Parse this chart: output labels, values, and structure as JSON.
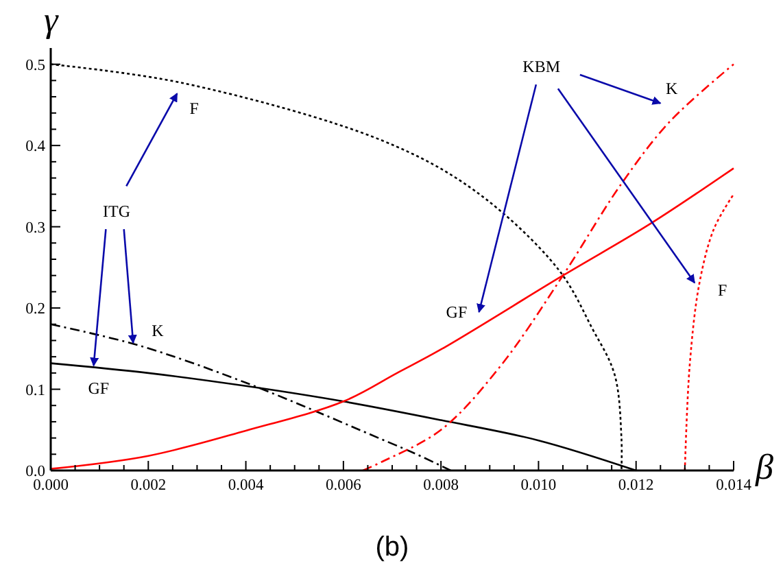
{
  "chart_data": {
    "type": "line",
    "xlabel": "β",
    "ylabel": "γ",
    "xlim": [
      0,
      0.014
    ],
    "ylim": [
      0,
      0.52
    ],
    "xticks": [
      {
        "value": 0,
        "label": "0.000"
      },
      {
        "value": 0.0005,
        "label": null
      },
      {
        "value": 0.001,
        "label": null
      },
      {
        "value": 0.0015,
        "label": null
      },
      {
        "value": 0.002,
        "label": "0.002"
      },
      {
        "value": 0.0025,
        "label": null
      },
      {
        "value": 0.003,
        "label": null
      },
      {
        "value": 0.0035,
        "label": null
      },
      {
        "value": 0.004,
        "label": "0.004"
      },
      {
        "value": 0.0045,
        "label": null
      },
      {
        "value": 0.005,
        "label": null
      },
      {
        "value": 0.0055,
        "label": null
      },
      {
        "value": 0.006,
        "label": "0.006"
      },
      {
        "value": 0.0065,
        "label": null
      },
      {
        "value": 0.007,
        "label": null
      },
      {
        "value": 0.0075,
        "label": null
      },
      {
        "value": 0.008,
        "label": "0.008"
      },
      {
        "value": 0.0085,
        "label": null
      },
      {
        "value": 0.009,
        "label": null
      },
      {
        "value": 0.0095,
        "label": null
      },
      {
        "value": 0.01,
        "label": "0.010"
      },
      {
        "value": 0.0105,
        "label": null
      },
      {
        "value": 0.011,
        "label": null
      },
      {
        "value": 0.0115,
        "label": null
      },
      {
        "value": 0.012,
        "label": "0.012"
      },
      {
        "value": 0.0125,
        "label": null
      },
      {
        "value": 0.013,
        "label": null
      },
      {
        "value": 0.0135,
        "label": null
      },
      {
        "value": 0.014,
        "label": "0.014"
      }
    ],
    "yticks": [
      {
        "value": 0,
        "label": "0.0"
      },
      {
        "value": 0.02,
        "label": null
      },
      {
        "value": 0.04,
        "label": null
      },
      {
        "value": 0.06,
        "label": null
      },
      {
        "value": 0.08,
        "label": null
      },
      0.1,
      {
        "value": 0.12,
        "label": null
      },
      {
        "value": 0.14,
        "label": null
      },
      {
        "value": 0.16,
        "label": null
      },
      {
        "value": 0.18,
        "label": null
      },
      0.2,
      {
        "value": 0.22,
        "label": null
      },
      {
        "value": 0.24,
        "label": null
      },
      {
        "value": 0.26,
        "label": null
      },
      {
        "value": 0.28,
        "label": null
      },
      0.3,
      {
        "value": 0.32,
        "label": null
      },
      {
        "value": 0.34,
        "label": null
      },
      {
        "value": 0.36,
        "label": null
      },
      {
        "value": 0.38,
        "label": null
      },
      0.4,
      {
        "value": 0.42,
        "label": null
      },
      {
        "value": 0.44,
        "label": null
      },
      {
        "value": 0.46,
        "label": null
      },
      {
        "value": 0.48,
        "label": null
      },
      0.5
    ],
    "grid": false,
    "marker": "none",
    "series": [
      {
        "color": "#000000",
        "line_style": "solid",
        "x": [
          0,
          0.002,
          0.004,
          0.006,
          0.008,
          0.01,
          0.012
        ],
        "values": [
          0.132,
          0.12,
          0.104,
          0.085,
          0.062,
          0.037,
          0
        ]
      },
      {
        "color": "#000000",
        "line_style": "dashed",
        "x": [
          0,
          0.0018,
          0.004,
          0.0068,
          0.0075,
          0.0082
        ],
        "values": [
          0.18,
          0.154,
          0.108,
          0.038,
          0.02,
          0
        ]
      },
      {
        "color": "#000000",
        "line_style": "dotted",
        "x": [
          0,
          0.0027,
          0.0068,
          0.0087,
          0.0104,
          0.0111,
          0.01156,
          0.0117,
          0.0117
        ],
        "values": [
          0.5,
          0.477,
          0.406,
          0.344,
          0.248,
          0.175,
          0.118,
          0.04,
          0
        ]
      },
      {
        "color": "#ff0000",
        "line_style": "solid",
        "x": [
          0,
          0.002,
          0.004,
          0.006,
          0.0071,
          0.008,
          0.0105,
          0.0123,
          0.014
        ],
        "values": [
          0.002,
          0.018,
          0.049,
          0.085,
          0.12,
          0.149,
          0.24,
          0.304,
          0.372
        ]
      },
      {
        "color": "#ff0000",
        "line_style": "dashed",
        "x": [
          0.0064,
          0.0068,
          0.008,
          0.0092,
          0.0105,
          0.0117,
          0.0127,
          0.014
        ],
        "values": [
          0,
          0.011,
          0.05,
          0.127,
          0.24,
          0.353,
          0.43,
          0.5
        ]
      },
      {
        "color": "#ff0000",
        "line_style": "dotted",
        "x": [
          0.013,
          0.0131,
          0.0133,
          0.0136,
          0.014
        ],
        "values": [
          0,
          0.13,
          0.231,
          0.298,
          0.34
        ]
      }
    ],
    "annotations": [
      {
        "text": "ITG",
        "x": 0.00088,
        "y": 0.129
      },
      "F",
      "K",
      "GF",
      {
        "text": "KBM",
        "x": 0.0132,
        "y": 0.231
      },
      "K",
      "GF",
      "F",
      "(b)"
    ]
  }
}
